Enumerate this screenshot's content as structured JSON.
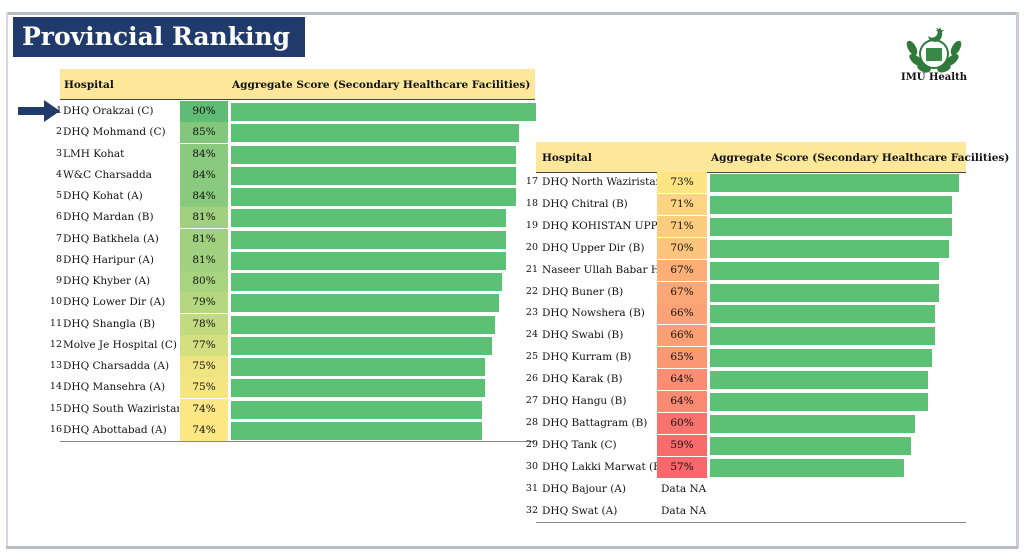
{
  "title": "Provincial Ranking",
  "logo_text": "IMU Health",
  "colors": {
    "title_bg": "#1f3a6b",
    "header_bg": "#fce79a",
    "bar": "#5cc174"
  },
  "chart_data": [
    {
      "type": "bar",
      "orientation": "horizontal",
      "header": {
        "hospital": "Hospital",
        "score": "Aggregate Score (Secondary Healthcare Facilities)"
      },
      "rows": [
        {
          "rank": "1",
          "hospital": "DHQ Orakzai (C)",
          "value": 90,
          "label": "90%",
          "color": "#60bb75"
        },
        {
          "rank": "2",
          "hospital": "DHQ Mohmand (C)",
          "value": 85,
          "label": "85%",
          "color": "#83c77d"
        },
        {
          "rank": "3",
          "hospital": "LMH Kohat",
          "value": 84,
          "label": "84%",
          "color": "#8aca7e"
        },
        {
          "rank": "4",
          "hospital": "W&C Charsadda",
          "value": 84,
          "label": "84%",
          "color": "#8aca7e"
        },
        {
          "rank": "5",
          "hospital": "DHQ Kohat (A)",
          "value": 84,
          "label": "84%",
          "color": "#8aca7e"
        },
        {
          "rank": "6",
          "hospital": "DHQ Mardan (B)",
          "value": 81,
          "label": "81%",
          "color": "#a1d17f"
        },
        {
          "rank": "7",
          "hospital": "DHQ Batkhela (A)",
          "value": 81,
          "label": "81%",
          "color": "#a1d17f"
        },
        {
          "rank": "8",
          "hospital": "DHQ Haripur (A)",
          "value": 81,
          "label": "81%",
          "color": "#a1d17f"
        },
        {
          "rank": "9",
          "hospital": "DHQ Khyber (A)",
          "value": 80,
          "label": "80%",
          "color": "#a9d47f"
        },
        {
          "rank": "10",
          "hospital": "DHQ Lower Dir (A)",
          "value": 79,
          "label": "79%",
          "color": "#b4d77f"
        },
        {
          "rank": "11",
          "hospital": "DHQ Shangla (B)",
          "value": 78,
          "label": "78%",
          "color": "#c2db80"
        },
        {
          "rank": "12",
          "hospital": "Molve Je Hospital (C)",
          "value": 77,
          "label": "77%",
          "color": "#d3df80"
        },
        {
          "rank": "13",
          "hospital": "DHQ Charsadda (A)",
          "value": 75,
          "label": "75%",
          "color": "#eee482"
        },
        {
          "rank": "14",
          "hospital": "DHQ Mansehra (A)",
          "value": 75,
          "label": "75%",
          "color": "#f6e683"
        },
        {
          "rank": "15",
          "hospital": "DHQ South Waziristan (A)",
          "value": 74,
          "label": "74%",
          "color": "#fbe783"
        },
        {
          "rank": "16",
          "hospital": "DHQ Abottabad (A)",
          "value": 74,
          "label": "74%",
          "color": "#fde783"
        }
      ],
      "xlim": [
        0,
        100
      ]
    },
    {
      "type": "bar",
      "orientation": "horizontal",
      "header": {
        "hospital": "Hospital",
        "score": "Aggregate Score (Secondary Healthcare Facilities)"
      },
      "rows": [
        {
          "rank": "17",
          "hospital": "DHQ North Waziristan (B)",
          "value": 73,
          "label": "73%",
          "color": "#fde483"
        },
        {
          "rank": "18",
          "hospital": "DHQ Chitral (B)",
          "value": 71,
          "label": "71%",
          "color": "#fdd480"
        },
        {
          "rank": "19",
          "hospital": "DHQ KOHISTAN UPPER",
          "value": 71,
          "label": "71%",
          "color": "#fdcd7f"
        },
        {
          "rank": "20",
          "hospital": "DHQ Upper Dir  (B)",
          "value": 70,
          "label": "70%",
          "color": "#fdc47d"
        },
        {
          "rank": "21",
          "hospital": "Naseer Ullah Babar Hospital",
          "value": 67,
          "label": "67%",
          "color": "#fcae77"
        },
        {
          "rank": "22",
          "hospital": "DHQ Buner (B)",
          "value": 67,
          "label": "67%",
          "color": "#fba876"
        },
        {
          "rank": "23",
          "hospital": "DHQ Nowshera (B)",
          "value": 66,
          "label": "66%",
          "color": "#fba376"
        },
        {
          "rank": "24",
          "hospital": "DHQ Swabi (B)",
          "value": 66,
          "label": "66%",
          "color": "#fb9f75"
        },
        {
          "rank": "25",
          "hospital": "DHQ Kurram (B)",
          "value": 65,
          "label": "65%",
          "color": "#fa9874"
        },
        {
          "rank": "26",
          "hospital": "DHQ Karak (B)",
          "value": 64,
          "label": "64%",
          "color": "#f98f72"
        },
        {
          "rank": "27",
          "hospital": "DHQ Hangu (B)",
          "value": 64,
          "label": "64%",
          "color": "#f98a71"
        },
        {
          "rank": "28",
          "hospital": "DHQ Battagram (B)",
          "value": 60,
          "label": "60%",
          "color": "#f8736d"
        },
        {
          "rank": "29",
          "hospital": "DHQ Tank (C)",
          "value": 59,
          "label": "59%",
          "color": "#f86b6b"
        },
        {
          "rank": "30",
          "hospital": "DHQ Lakki Marwat (B)",
          "value": 57,
          "label": "57%",
          "color": "#f7676b"
        },
        {
          "rank": "31",
          "hospital": "DHQ Bajour (A)",
          "value": null,
          "label": "Data NA",
          "color": "#ffffff"
        },
        {
          "rank": "32",
          "hospital": "DHQ Swat (A)",
          "value": null,
          "label": "Data NA",
          "color": "#ffffff"
        }
      ],
      "xlim": [
        0,
        100
      ]
    }
  ]
}
